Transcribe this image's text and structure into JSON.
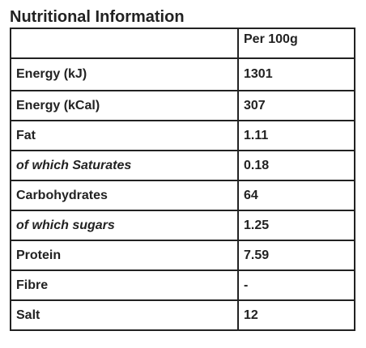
{
  "title": "Nutritional Information",
  "table": {
    "header": {
      "label": "",
      "value": "Per 100g"
    },
    "rows": [
      {
        "label": "Energy (kJ)",
        "value": "1301",
        "sub": false
      },
      {
        "label": "Energy (kCal)",
        "value": "307",
        "sub": false
      },
      {
        "label": "Fat",
        "value": "1.11",
        "sub": false
      },
      {
        "label": "of which Saturates",
        "value": "0.18",
        "sub": true
      },
      {
        "label": "Carbohydrates",
        "value": "64",
        "sub": false
      },
      {
        "label": "of which sugars",
        "value": "1.25",
        "sub": true
      },
      {
        "label": "Protein",
        "value": "7.59",
        "sub": false
      },
      {
        "label": "Fibre",
        "value": "-",
        "sub": false
      },
      {
        "label": "Salt",
        "value": "12",
        "sub": false
      }
    ]
  }
}
